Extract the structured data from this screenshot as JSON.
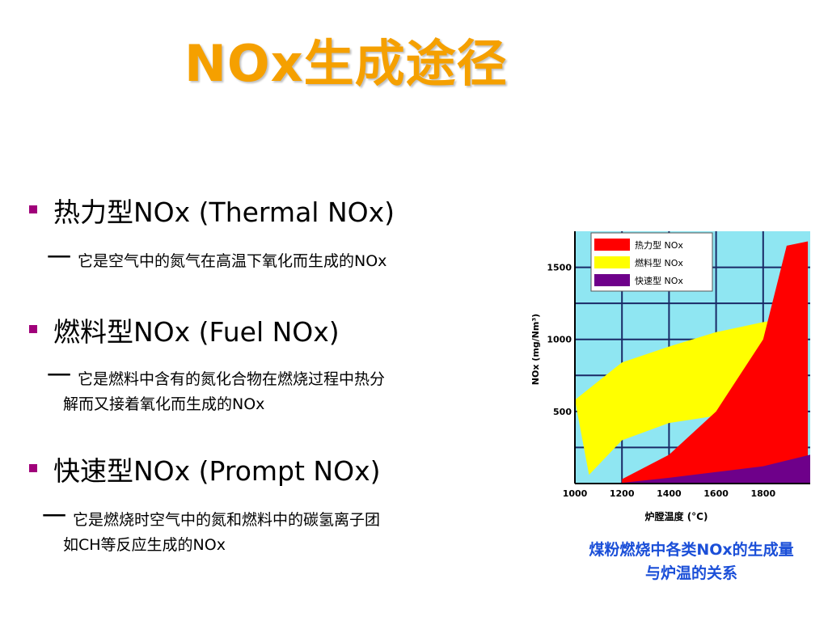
{
  "title": "NOx生成途径",
  "bullets": [
    {
      "heading": "热力型NOx (Thermal NOx)",
      "desc_lines": [
        "它是空气中的氮气在高温下氧化而生成的NOx"
      ]
    },
    {
      "heading": "燃料型NOx (Fuel NOx)",
      "desc_lines": [
        "它是燃料中含有的氮化合物在燃烧过程中热分",
        "解而又接着氧化而生成的NOx"
      ]
    },
    {
      "heading": "快速型NOx  (Prompt NOx)",
      "desc_lines": [
        "它是燃烧时空气中的氮和燃料中的碳氢离子团",
        "如CH等反应生成的NOx"
      ]
    }
  ],
  "dash": "一",
  "caption_lines": [
    "煤粉燃烧中各类NOx的生成量",
    "与炉温的关系"
  ],
  "chart_data": {
    "type": "area",
    "xlabel": "炉膛温度 (°C)",
    "ylabel": "NOx (mg/Nm³)",
    "x_ticks": [
      "1000",
      "1200",
      "1400",
      "1600",
      "1800"
    ],
    "y_ticks": [
      "500",
      "1000",
      "1500"
    ],
    "xlim": [
      1000,
      2000
    ],
    "ylim": [
      0,
      1750
    ],
    "legend": [
      "热力型 NOx",
      "燃料型 NOx",
      "快速型 NOx"
    ],
    "legend_placement": "top-left",
    "background_color": "#8fe6f2",
    "series": [
      {
        "name": "热力型 NOx",
        "color": "#ff0000",
        "lower": [
          [
            1200,
            0
          ],
          [
            1400,
            0
          ],
          [
            1600,
            0
          ],
          [
            1800,
            0
          ],
          [
            1900,
            0
          ],
          [
            1990,
            0
          ]
        ],
        "upper": [
          [
            1200,
            30
          ],
          [
            1400,
            200
          ],
          [
            1600,
            500
          ],
          [
            1800,
            1000
          ],
          [
            1900,
            1650
          ],
          [
            1990,
            1680
          ]
        ]
      },
      {
        "name": "燃料型 NOx",
        "color": "#ffff00",
        "lower": [
          [
            1060,
            60
          ],
          [
            1200,
            300
          ],
          [
            1400,
            420
          ],
          [
            1600,
            470
          ],
          [
            1800,
            510
          ],
          [
            1920,
            560
          ]
        ],
        "upper": [
          [
            1000,
            580
          ],
          [
            1200,
            840
          ],
          [
            1400,
            950
          ],
          [
            1600,
            1050
          ],
          [
            1800,
            1120
          ],
          [
            1920,
            1150
          ]
        ]
      },
      {
        "name": "快速型 NOx",
        "color": "#6e008a",
        "lower": [
          [
            1200,
            0
          ],
          [
            1600,
            0
          ],
          [
            2000,
            0
          ]
        ],
        "upper": [
          [
            1200,
            5
          ],
          [
            1400,
            40
          ],
          [
            1600,
            80
          ],
          [
            1800,
            120
          ],
          [
            2000,
            200
          ]
        ]
      }
    ]
  }
}
